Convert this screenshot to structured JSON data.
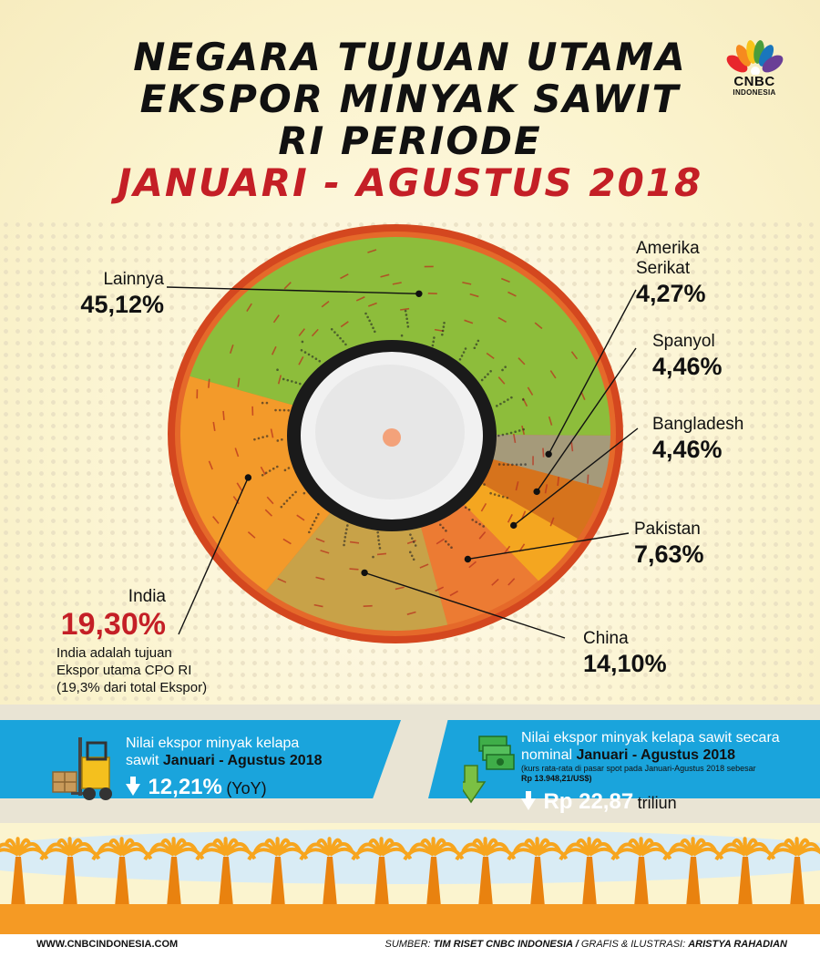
{
  "title": {
    "line1": "NEGARA TUJUAN UTAMA",
    "line2": "EKSPOR MINYAK SAWIT",
    "line3": "RI PERIODE",
    "line4": "JANUARI -  AGUSTUS 2018"
  },
  "logo": {
    "name": "CNBC",
    "sub": "INDONESIA"
  },
  "chart_data": {
    "type": "pie",
    "title": "",
    "unit": "%",
    "slices": [
      {
        "name": "Lainnya",
        "value": 45.12,
        "label": "45,12%",
        "color": "#8dbd3b"
      },
      {
        "name": "Amerika Serikat",
        "value": 4.27,
        "label": "4,27%",
        "color": "#a59a7a"
      },
      {
        "name": "Spanyol",
        "value": 4.46,
        "label": "4,46%",
        "color": "#d6731c"
      },
      {
        "name": "Bangladesh",
        "value": 4.46,
        "label": "4,46%",
        "color": "#f4a620"
      },
      {
        "name": "Pakistan",
        "value": 7.63,
        "label": "7,63%",
        "color": "#ec7b33"
      },
      {
        "name": "China",
        "value": 14.1,
        "label": "14,10%",
        "color": "#c8a248"
      },
      {
        "name": "India",
        "value": 19.3,
        "label": "19,30%",
        "color": "#f39a2a"
      }
    ]
  },
  "labels": {
    "lainnya": {
      "name": "Lainnya",
      "value": "45,12%"
    },
    "amerika": {
      "name1": "Amerika",
      "name2": "Serikat",
      "value": "4,27%"
    },
    "spanyol": {
      "name": "Spanyol",
      "value": "4,46%"
    },
    "bangladesh": {
      "name": "Bangladesh",
      "value": "4,46%"
    },
    "pakistan": {
      "name": "Pakistan",
      "value": "7,63%"
    },
    "china": {
      "name": "China",
      "value": "14,10%"
    },
    "india": {
      "name": "India",
      "value": "19,30%"
    }
  },
  "india_note": {
    "line1": "India adalah tujuan",
    "line2": "Ekspor utama CPO RI",
    "line3": "(19,3% dari total Ekspor)"
  },
  "banner_left": {
    "line1": "Nilai ekspor minyak kelapa",
    "line2_pre": "sawit ",
    "line2_bold": "Januari - Agustus 2018",
    "value": "12,21%",
    "suffix": "(YoY)",
    "icon": "forklift-icon"
  },
  "banner_right": {
    "line1": "Nilai ekspor minyak kelapa sawit secara",
    "line2_pre": "nominal ",
    "line2_bold": "Januari - Agustus 2018",
    "note1": "(kurs rata-rata di pasar spot pada Januari-Agustus 2018 sebesar",
    "note2": "Rp 13.948,21/US$)",
    "value": "Rp 22,87",
    "suffix": "triliun",
    "icon": "money-down-icon"
  },
  "footer": {
    "website": "WWW.CNBCINDONESIA.COM",
    "source_label": "SUMBER:",
    "source": "TIM RISET CNBC INDONESIA /",
    "credit_label": "GRAFIS & ILUSTRASI:",
    "credit": "ARISTYA RAHADIAN"
  }
}
